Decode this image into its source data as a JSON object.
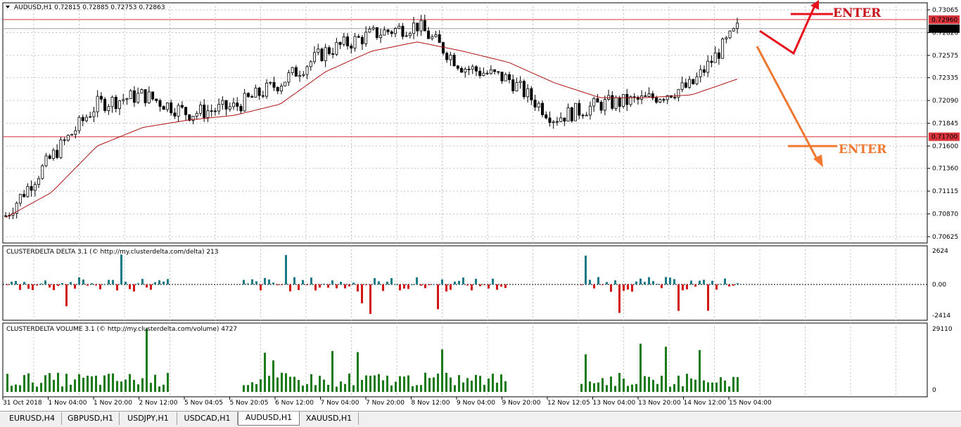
{
  "main_chart": {
    "header": "AUDUSD,H1  0.72815 0.72885 0.72753 0.72863",
    "price_labels": [
      "0.73065",
      "0.72820",
      "0.72575",
      "0.72335",
      "0.72090",
      "0.71845",
      "0.71600",
      "0.71360",
      "0.71115",
      "0.70870",
      "0.70625"
    ],
    "hlines": [
      {
        "label": "0.72960",
        "price": 0.7296
      },
      {
        "label": "0.71700",
        "price": 0.717
      }
    ],
    "current_price": "0.72863",
    "arrow_up_label": "ENTER",
    "arrow_down_label": "ENTER",
    "colors": {
      "up_arrow": "#e8121c",
      "down_arrow": "#f07830",
      "hline": "#d8343a",
      "ma": "#b01010",
      "candle": "#000000"
    }
  },
  "delta_panel": {
    "header": "CLUSTERDELTA DELTA 3.1 (© http://my.clusterdelta.com/delta) 213",
    "axis": [
      "2624",
      "0.00",
      "-2414"
    ],
    "colors": {
      "pos": "#1b7a86",
      "neg": "#d21616"
    }
  },
  "volume_panel": {
    "header": "CLUSTERDELTA VOLUME 3.1 (© http://my.clusterdelta.com/volume) 4727",
    "axis": [
      "29110",
      "0"
    ],
    "color": "#1a7a1a"
  },
  "time_labels": [
    "31 Oct 2018",
    "1 Nov 04:00",
    "1 Nov 20:00",
    "2 Nov 12:00",
    "5 Nov 04:05",
    "5 Nov 20:05",
    "6 Nov 12:00",
    "7 Nov 04:00",
    "7 Nov 20:00",
    "8 Nov 12:00",
    "9 Nov 04:00",
    "9 Nov 20:00",
    "12 Nov 12:05",
    "13 Nov 04:00",
    "13 Nov 20:00",
    "14 Nov 12:00",
    "15 Nov 04:00"
  ],
  "tabs": [
    {
      "label": "EURUSD,H4",
      "active": false
    },
    {
      "label": "GBPUSD,H1",
      "active": false
    },
    {
      "label": "USDJPY,H1",
      "active": false
    },
    {
      "label": "USDCAD,H1",
      "active": false
    },
    {
      "label": "AUDUSD,H1",
      "active": true
    },
    {
      "label": "XAUUSD,H1",
      "active": false
    }
  ],
  "chart_data": {
    "type": "candlestick",
    "symbol": "AUDUSD,H1",
    "ylim": [
      0.70625,
      0.73065
    ],
    "x": [
      "31 Oct 2018",
      "1 Nov 04:00",
      "1 Nov 20:00",
      "2 Nov 12:00",
      "5 Nov 04:05",
      "5 Nov 20:05",
      "6 Nov 12:00",
      "7 Nov 04:00",
      "7 Nov 20:00",
      "8 Nov 12:00",
      "9 Nov 04:00",
      "9 Nov 20:00",
      "12 Nov 12:05",
      "13 Nov 04:00",
      "13 Nov 20:00",
      "14 Nov 12:00",
      "15 Nov 04:00"
    ],
    "close": [
      0.7085,
      0.7148,
      0.7205,
      0.7215,
      0.7195,
      0.7202,
      0.7228,
      0.7262,
      0.728,
      0.729,
      0.7245,
      0.7232,
      0.719,
      0.7205,
      0.721,
      0.7225,
      0.7286
    ],
    "ma": [
      0.7083,
      0.711,
      0.716,
      0.718,
      0.7188,
      0.7193,
      0.7205,
      0.724,
      0.7262,
      0.7272,
      0.7262,
      0.725,
      0.7228,
      0.7212,
      0.7212,
      0.7215,
      0.7232
    ],
    "hlines": [
      0.7296,
      0.717
    ]
  }
}
